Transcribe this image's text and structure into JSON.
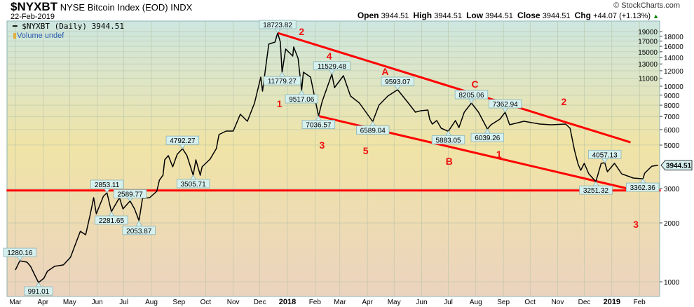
{
  "header": {
    "symbol": "$NYXBT",
    "name": "NYSE Bitcoin Index (EOD)",
    "exchange": "INDX",
    "date": "22-Feb-2019",
    "brand": "© StockCharts.com",
    "open_label": "Open",
    "open": "3944.51",
    "high_label": "High",
    "high": "3944.51",
    "low_label": "Low",
    "low": "3944.51",
    "close_label": "Close",
    "close": "3944.51",
    "chg_label": "Chg",
    "chg": "+44.07 (+1.13%)",
    "up_icon": "▲"
  },
  "legend": {
    "series": "$NYXBT (Daily) 3944.51",
    "volume": "Volume undef"
  },
  "colors": {
    "price": "#000000",
    "trend": "#ff0000",
    "callout_fill": "#d6f0ee",
    "callout_border": "#8ab4b4"
  },
  "chart_data": {
    "type": "line",
    "title": "$NYXBT NYSE Bitcoin Index (EOD)",
    "x_unit": "days since 2017-03-01",
    "y_scale": "log",
    "ylim": [
      900,
      21000
    ],
    "y_ticks": [
      1000,
      2000,
      3000,
      5000,
      6000,
      7000,
      8000,
      9000,
      10000,
      11000,
      12000,
      13000,
      14000,
      15000,
      16000,
      17000,
      18000,
      19000
    ],
    "x_ticks": [
      "Mar",
      "Apr",
      "May",
      "Jun",
      "Jul",
      "Aug",
      "Sep",
      "Oct",
      "Nov",
      "Dec",
      "2018",
      "Feb",
      "Mar",
      "Apr",
      "May",
      "Jun",
      "Jul",
      "Aug",
      "Sep",
      "Oct",
      "Nov",
      "Dec",
      "2019",
      "Feb"
    ],
    "grid": true,
    "last_value": "3944.51",
    "series": [
      {
        "name": "$NYXBT (Daily)",
        "points": [
          [
            0,
            1150
          ],
          [
            5,
            1280
          ],
          [
            13,
            1260
          ],
          [
            17,
            1199
          ],
          [
            22,
            1077
          ],
          [
            26,
            991
          ],
          [
            32,
            1042
          ],
          [
            36,
            1132
          ],
          [
            44,
            1199
          ],
          [
            54,
            1220
          ],
          [
            62,
            1335
          ],
          [
            67,
            1536
          ],
          [
            73,
            1812
          ],
          [
            79,
            1738
          ],
          [
            84,
            2190
          ],
          [
            88,
            2692
          ],
          [
            91,
            2227
          ],
          [
            99,
            2737
          ],
          [
            103,
            2853
          ],
          [
            108,
            2282
          ],
          [
            117,
            2692
          ],
          [
            121,
            2360
          ],
          [
            129,
            2590
          ],
          [
            134,
            2360
          ],
          [
            139,
            2054
          ],
          [
            143,
            2670
          ],
          [
            151,
            2692
          ],
          [
            159,
            2900
          ],
          [
            162,
            3309
          ],
          [
            166,
            3505
          ],
          [
            168,
            4204
          ],
          [
            172,
            4418
          ],
          [
            177,
            3872
          ],
          [
            182,
            4489
          ],
          [
            188,
            4792
          ],
          [
            193,
            4418
          ],
          [
            200,
            3506
          ],
          [
            203,
            4204
          ],
          [
            208,
            3506
          ],
          [
            210,
            3872
          ],
          [
            219,
            4239
          ],
          [
            226,
            4797
          ],
          [
            229,
            5657
          ],
          [
            237,
            5896
          ],
          [
            243,
            5896
          ],
          [
            245,
            5896
          ],
          [
            253,
            7189
          ],
          [
            261,
            6618
          ],
          [
            269,
            8204
          ],
          [
            276,
            11133
          ],
          [
            278,
            9436
          ],
          [
            285,
            16411
          ],
          [
            292,
            16819
          ],
          [
            295,
            18724
          ],
          [
            298,
            16819
          ],
          [
            300,
            11779
          ],
          [
            304,
            15488
          ],
          [
            312,
            14256
          ],
          [
            313,
            15871
          ],
          [
            318,
            13900
          ],
          [
            322,
            9517
          ],
          [
            324,
            11795
          ],
          [
            332,
            11133
          ],
          [
            341,
            7037
          ],
          [
            345,
            8340
          ],
          [
            356,
            11529
          ],
          [
            359,
            9835
          ],
          [
            369,
            11320
          ],
          [
            377,
            8912
          ],
          [
            387,
            8204
          ],
          [
            402,
            6589
          ],
          [
            409,
            8002
          ],
          [
            419,
            8912
          ],
          [
            430,
            9593
          ],
          [
            442,
            8204
          ],
          [
            450,
            7366
          ],
          [
            456,
            7491
          ],
          [
            464,
            7552
          ],
          [
            466,
            6784
          ],
          [
            469,
            6404
          ],
          [
            474,
            6673
          ],
          [
            479,
            6097
          ],
          [
            487,
            5883
          ],
          [
            495,
            6673
          ],
          [
            499,
            6145
          ],
          [
            505,
            7366
          ],
          [
            513,
            8205
          ],
          [
            521,
            7366
          ],
          [
            531,
            6039
          ],
          [
            535,
            6350
          ],
          [
            545,
            6784
          ],
          [
            551,
            7363
          ],
          [
            556,
            6350
          ],
          [
            572,
            6618
          ],
          [
            590,
            6404
          ],
          [
            603,
            6350
          ],
          [
            619,
            6404
          ],
          [
            624,
            6097
          ],
          [
            629,
            4690
          ],
          [
            633,
            4000
          ],
          [
            636,
            3715
          ],
          [
            640,
            4034
          ],
          [
            645,
            3565
          ],
          [
            653,
            3251
          ],
          [
            659,
            4034
          ],
          [
            663,
            4057
          ],
          [
            666,
            3654
          ],
          [
            674,
            4034
          ],
          [
            682,
            3565
          ],
          [
            695,
            3392
          ],
          [
            706,
            3362
          ],
          [
            708,
            3594
          ],
          [
            716,
            3901
          ],
          [
            723,
            3945
          ]
        ]
      }
    ],
    "callouts": [
      {
        "day": 5,
        "value": "1280.16",
        "side": "above"
      },
      {
        "day": 26,
        "value": "991.01",
        "side": "below"
      },
      {
        "day": 103,
        "value": "2853.11",
        "side": "above"
      },
      {
        "day": 108,
        "value": "2281.65",
        "side": "below"
      },
      {
        "day": 129,
        "value": "2589.77",
        "side": "above"
      },
      {
        "day": 139,
        "value": "2053.87",
        "side": "below"
      },
      {
        "day": 188,
        "value": "4792.27",
        "side": "above"
      },
      {
        "day": 200,
        "value": "3505.71",
        "side": "below"
      },
      {
        "day": 295,
        "value": "18723.82",
        "side": "above"
      },
      {
        "day": 300,
        "value": "11779.27",
        "side": "below"
      },
      {
        "day": 322,
        "value": "9517.06",
        "side": "below"
      },
      {
        "day": 341,
        "value": "7036.57",
        "side": "below"
      },
      {
        "day": 356,
        "value": "11529.48",
        "side": "above"
      },
      {
        "day": 402,
        "value": "6589.04",
        "side": "below"
      },
      {
        "day": 430,
        "value": "9593.07",
        "side": "above"
      },
      {
        "day": 487,
        "value": "5883.05",
        "side": "below"
      },
      {
        "day": 513,
        "value": "8205.06",
        "side": "above"
      },
      {
        "day": 531,
        "value": "6039.26",
        "side": "below"
      },
      {
        "day": 551,
        "value": "7362.94",
        "side": "above"
      },
      {
        "day": 653,
        "value": "3251.32",
        "side": "below"
      },
      {
        "day": 663,
        "value": "4057.13",
        "side": "above"
      },
      {
        "day": 706,
        "value": "3362.36",
        "side": "below"
      }
    ],
    "trendlines": [
      {
        "name": "support-horizontal",
        "from": [
          -10,
          2930
        ],
        "to": [
          726,
          2930
        ]
      },
      {
        "name": "upper-channel",
        "from": [
          295,
          18724
        ],
        "to": [
          692,
          5166
        ]
      },
      {
        "name": "lower-channel",
        "from": [
          341,
          7037
        ],
        "to": [
          692,
          2972
        ]
      }
    ],
    "wave_labels": [
      {
        "text": "2",
        "day": 322,
        "price": 19040
      },
      {
        "text": "1",
        "day": 297,
        "price": 8130
      },
      {
        "text": "3",
        "day": 345,
        "price": 5000
      },
      {
        "text": "4",
        "day": 353,
        "price": 13350
      },
      {
        "text": "5",
        "day": 394,
        "price": 4680
      },
      {
        "text": "A",
        "day": 416,
        "price": 11130
      },
      {
        "text": "B",
        "day": 488,
        "price": 4136
      },
      {
        "text": "C",
        "day": 517,
        "price": 10080
      },
      {
        "text": "1",
        "day": 544,
        "price": 4490
      },
      {
        "text": "2",
        "day": 617,
        "price": 8340
      },
      {
        "text": "3",
        "day": 698,
        "price": 1967
      }
    ]
  }
}
